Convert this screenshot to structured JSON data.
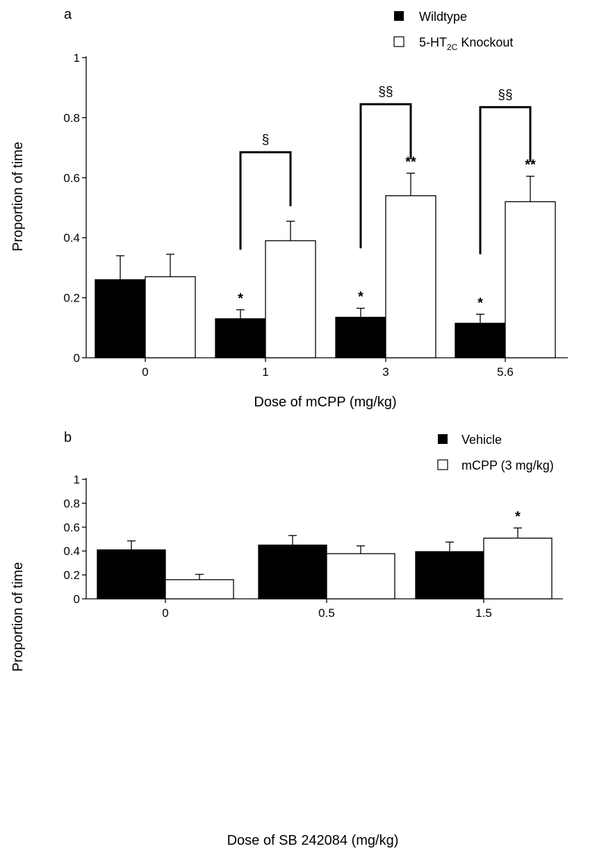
{
  "chart_data": [
    {
      "type": "bar",
      "panel_label": "a",
      "xlabel": "Dose of mCPP (mg/kg)",
      "ylabel": "Proportion of time",
      "categories": [
        "0",
        "1",
        "3",
        "5.6"
      ],
      "ylim": [
        0,
        1
      ],
      "yticks": [
        "0",
        "0.2",
        "0.4",
        "0.6",
        "0.8",
        "1"
      ],
      "legend_position": "top-right",
      "series": [
        {
          "name": "Wildtype",
          "fill": "filled",
          "values": [
            0.26,
            0.13,
            0.135,
            0.115
          ],
          "errors": [
            0.08,
            0.03,
            0.03,
            0.03
          ],
          "annotations": [
            "",
            "*",
            "*",
            "*"
          ]
        },
        {
          "name_main": "5-HT",
          "name_sub": "2C",
          "name_rest": " Knockout",
          "fill": "open",
          "values": [
            0.27,
            0.39,
            0.54,
            0.52
          ],
          "errors": [
            0.075,
            0.065,
            0.075,
            0.085
          ],
          "annotations": [
            "",
            "",
            "**",
            "**"
          ]
        }
      ],
      "comparisons": [
        {
          "category": 1,
          "label": "§"
        },
        {
          "category": 2,
          "label": "§§"
        },
        {
          "category": 3,
          "label": "§§"
        }
      ]
    },
    {
      "type": "bar",
      "panel_label": "b",
      "xlabel": "Dose of SB 242084 (mg/kg)",
      "ylabel": "Proportion of time",
      "categories": [
        "0",
        "0.5",
        "1.5"
      ],
      "ylim": [
        0,
        1
      ],
      "yticks": [
        "0",
        "0.2",
        "0.4",
        "0.6",
        "0.8",
        "1"
      ],
      "legend_position": "top-right",
      "series": [
        {
          "name": "Vehicle",
          "fill": "filled",
          "values": [
            0.41,
            0.45,
            0.395
          ],
          "errors": [
            0.075,
            0.08,
            0.08
          ],
          "annotations": [
            "",
            "",
            ""
          ]
        },
        {
          "name": "mCPP (3 mg/kg)",
          "fill": "open",
          "values": [
            0.16,
            0.378,
            0.508
          ],
          "errors": [
            0.045,
            0.065,
            0.085
          ],
          "annotations": [
            "",
            "",
            "*"
          ]
        }
      ]
    }
  ]
}
